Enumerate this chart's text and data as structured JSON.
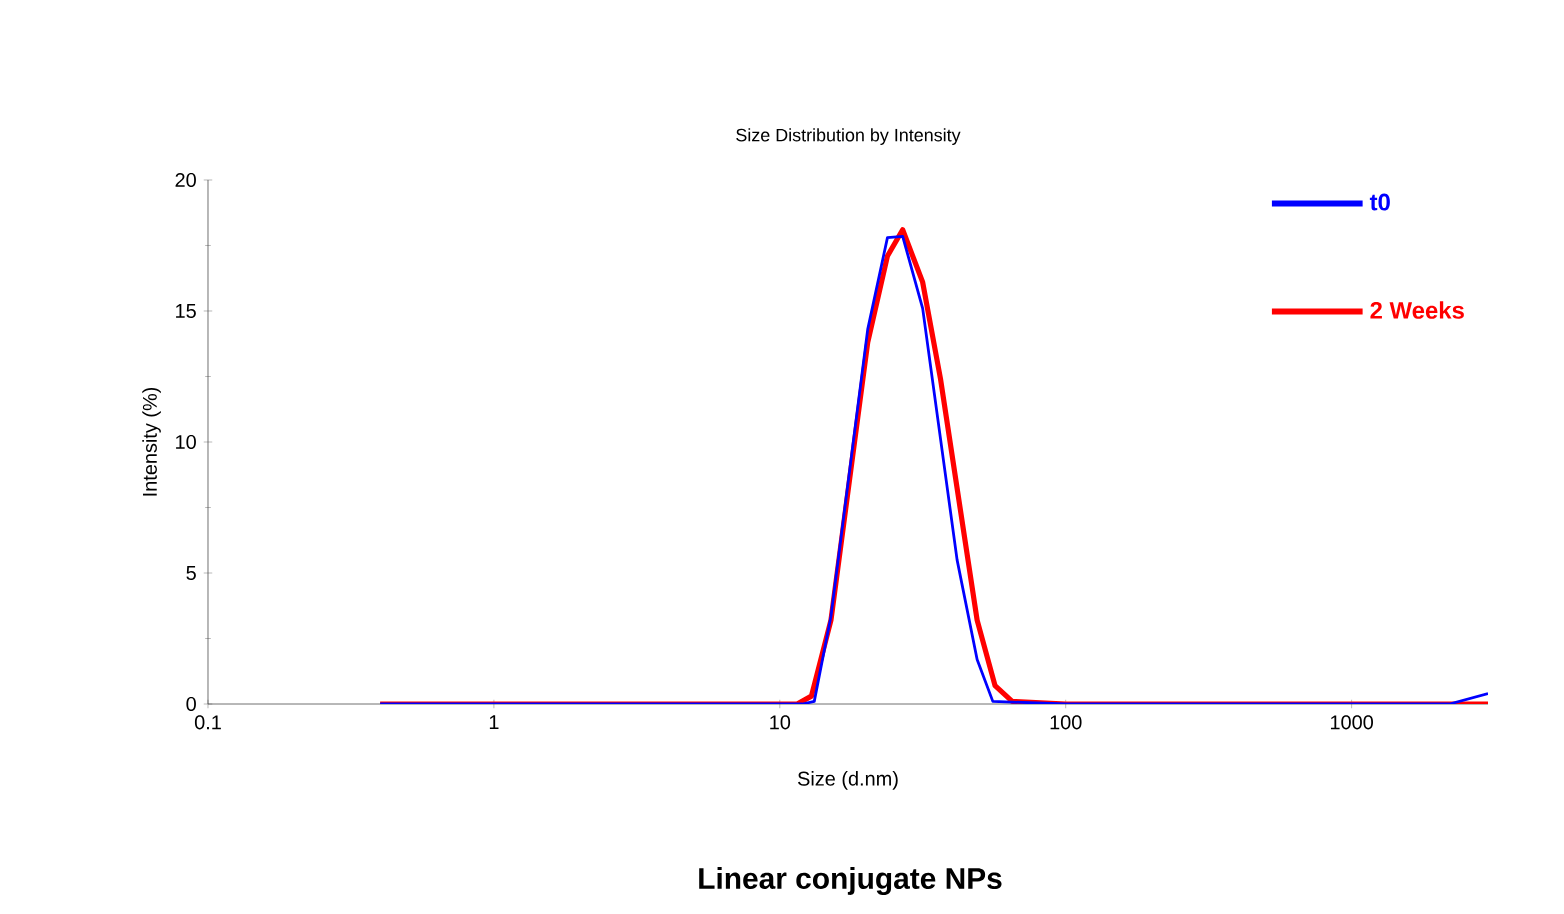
{
  "chart_data": {
    "type": "line",
    "title": "Size Distribution by Intensity",
    "xlabel": "Size (d.nm)",
    "ylabel": "Intensity (%)",
    "annotations": [
      "Linear conjugate NPs"
    ],
    "log": "x",
    "xlim": [
      0.1,
      3000
    ],
    "ylim": [
      0,
      20
    ],
    "xticks": [
      0.1,
      1,
      10,
      100,
      1000
    ],
    "yticks": [
      0,
      5,
      10,
      15,
      20
    ],
    "legend": "top right",
    "grid": false,
    "marker": "none",
    "line_style": "solid",
    "series": [
      {
        "name": "t0",
        "color": "#0000ff",
        "x": [
          0.4,
          1,
          10,
          12,
          13.2,
          15.1,
          20.3,
          23.8,
          26.9,
          31.6,
          41.7,
          49,
          55.6,
          100,
          1000,
          2200,
          3000
        ],
        "values": [
          0,
          0,
          0,
          0,
          0.1,
          3.35,
          14.3,
          17.8,
          17.85,
          15.1,
          5.5,
          1.7,
          0.1,
          0,
          0,
          0,
          0.4
        ]
      },
      {
        "name": "2 Weeks",
        "color": "#ff0000",
        "x": [
          0.4,
          1,
          10,
          11.5,
          12.9,
          15.1,
          20.3,
          23.8,
          26.9,
          31.6,
          36.5,
          49,
          56.6,
          65,
          100,
          1000,
          3000
        ],
        "values": [
          0,
          0,
          0,
          0,
          0.3,
          3.2,
          13.8,
          17.1,
          18.1,
          16.1,
          12.4,
          3.2,
          0.7,
          0.1,
          0,
          0,
          0
        ]
      }
    ]
  }
}
